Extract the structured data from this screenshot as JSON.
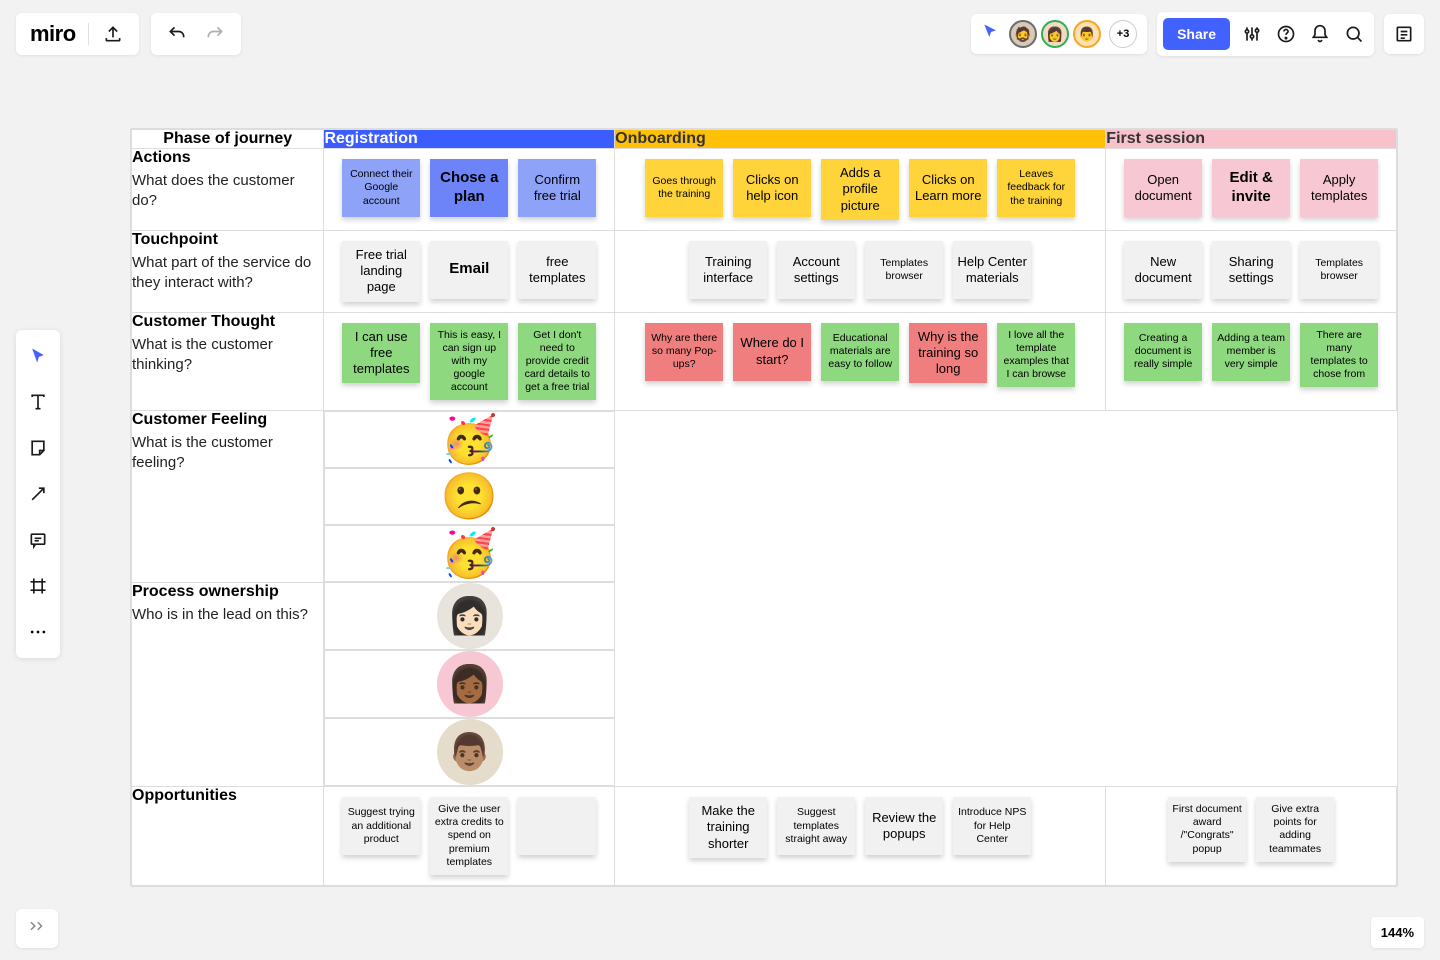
{
  "brand": "miro",
  "topbar": {
    "share_label": "Share",
    "extra_collaborators": "+3",
    "avatars": [
      {
        "border": "#6b6b6b",
        "bg": "#d9c9b8",
        "glyph": "🧔"
      },
      {
        "border": "#2bb24c",
        "bg": "#f4d9c6",
        "glyph": "👩"
      },
      {
        "border": "#f5a623",
        "bg": "#ffe0b2",
        "glyph": "👨"
      }
    ]
  },
  "zoom": "144%",
  "colors": {
    "blue_header": "#3b5cff",
    "yellow_header": "#ffc107",
    "pink_header": "#f8c2cc",
    "sticky_blue_a": "#8ea2f8",
    "sticky_blue_b": "#6c84f7",
    "sticky_yellow": "#ffd43b",
    "sticky_pink": "#f7c8d3",
    "sticky_grey": "#f1f1f1",
    "sticky_green": "#8ed97f",
    "sticky_red": "#f07e7e",
    "canvas_bg": "#f2f2f2"
  },
  "journey": {
    "header_label": "Phase of journey",
    "phases": [
      {
        "key": "reg",
        "label": "Registration",
        "bg": "#3b5cff",
        "fg": "#ffffff"
      },
      {
        "key": "onb",
        "label": "Onboarding",
        "bg": "#ffc107",
        "fg": "#333333"
      },
      {
        "key": "first",
        "label": "First session",
        "bg": "#f8c2cc",
        "fg": "#333333"
      }
    ],
    "rows": [
      {
        "title": "Actions",
        "subtitle": "What does the customer do?",
        "cells": {
          "reg": [
            {
              "text": "Connect their Google account",
              "bg": "#8ea2f8"
            },
            {
              "text": "Chose a plan",
              "bg": "#6c84f7",
              "cls": "big"
            },
            {
              "text": "Confirm free trial",
              "bg": "#8ea2f8",
              "cls": "med"
            }
          ],
          "onb": [
            {
              "text": "Goes through the training",
              "bg": "#ffd43b"
            },
            {
              "text": "Clicks on help icon",
              "bg": "#ffd43b",
              "cls": "med"
            },
            {
              "text": "Adds a profile picture",
              "bg": "#ffd43b",
              "cls": "med"
            },
            {
              "text": "Clicks on Learn more",
              "bg": "#ffd43b",
              "cls": "med"
            },
            {
              "text": "Leaves feedback for the training",
              "bg": "#ffd43b"
            }
          ],
          "first": [
            {
              "text": "Open document",
              "bg": "#f7c8d3",
              "cls": "med"
            },
            {
              "text": "Edit & invite",
              "bg": "#f7c8d3",
              "cls": "big"
            },
            {
              "text": "Apply templates",
              "bg": "#f7c8d3",
              "cls": "med"
            }
          ]
        }
      },
      {
        "title": "Touchpoint",
        "subtitle": "What part of the service do they interact with?",
        "cells": {
          "reg": [
            {
              "text": "Free trial landing page",
              "bg": "#f1f1f1",
              "cls": "med"
            },
            {
              "text": "Email",
              "bg": "#f1f1f1",
              "cls": "big"
            },
            {
              "text": "free templates",
              "bg": "#f1f1f1",
              "cls": "med"
            }
          ],
          "onb": [
            {
              "text": "Training interface",
              "bg": "#f1f1f1",
              "cls": "med"
            },
            {
              "text": "Account settings",
              "bg": "#f1f1f1",
              "cls": "med"
            },
            {
              "text": "Templates browser",
              "bg": "#f1f1f1"
            },
            {
              "text": "Help Center materials",
              "bg": "#f1f1f1",
              "cls": "med"
            }
          ],
          "first": [
            {
              "text": "New document",
              "bg": "#f1f1f1",
              "cls": "med"
            },
            {
              "text": "Sharing settings",
              "bg": "#f1f1f1",
              "cls": "med"
            },
            {
              "text": "Templates browser",
              "bg": "#f1f1f1"
            }
          ]
        }
      },
      {
        "title": "Customer Thought",
        "subtitle": "What is the customer thinking?",
        "cells": {
          "reg": [
            {
              "text": "I can use free templates",
              "bg": "#8ed97f",
              "cls": "med"
            },
            {
              "text": "This is easy, I can sign up with my google account",
              "bg": "#8ed97f"
            },
            {
              "text": "Get I don't need to provide credit card details to get a free trial",
              "bg": "#8ed97f"
            }
          ],
          "onb": [
            {
              "text": "Why are there so many Pop-ups?",
              "bg": "#f07e7e"
            },
            {
              "text": "Where do I start?",
              "bg": "#f07e7e",
              "cls": "med"
            },
            {
              "text": "Educational materials are easy to follow",
              "bg": "#8ed97f"
            },
            {
              "text": "Why is the training so long",
              "bg": "#f07e7e",
              "cls": "med"
            },
            {
              "text": "I love all the template examples that I can browse",
              "bg": "#8ed97f"
            }
          ],
          "first": [
            {
              "text": "Creating a document is really simple",
              "bg": "#8ed97f"
            },
            {
              "text": "Adding a team member is very simple",
              "bg": "#8ed97f"
            },
            {
              "text": "There are many templates to chose from",
              "bg": "#8ed97f"
            }
          ]
        }
      },
      {
        "title": "Customer Feeling",
        "subtitle": "What is the customer feeling?",
        "type": "emoji",
        "emoji": {
          "reg": "🥳",
          "onb": "😕",
          "first": "🥳"
        }
      },
      {
        "title": "Process ownership",
        "subtitle": "Who is in the lead on this?",
        "type": "avatar",
        "avatar": {
          "reg": {
            "bg": "#e8e3dc",
            "glyph": "👩🏻"
          },
          "onb": {
            "bg": "#f7c8d3",
            "glyph": "👩🏾"
          },
          "first": {
            "bg": "#e6dccb",
            "glyph": "👨🏽"
          }
        }
      },
      {
        "title": "Opportunities",
        "subtitle": "",
        "cells": {
          "reg": [
            {
              "text": "Suggest trying an additional product",
              "bg": "#f1f1f1"
            },
            {
              "text": "Give the user extra credits to spend on premium templates",
              "bg": "#f1f1f1"
            },
            {
              "text": "",
              "bg": "#f1f1f1"
            }
          ],
          "onb": [
            {
              "text": "Make the training shorter",
              "bg": "#f1f1f1",
              "cls": "med"
            },
            {
              "text": "Suggest templates straight away",
              "bg": "#f1f1f1"
            },
            {
              "text": "Review the popups",
              "bg": "#f1f1f1",
              "cls": "med"
            },
            {
              "text": "Introduce NPS for Help Center",
              "bg": "#f1f1f1"
            }
          ],
          "first": [
            {
              "text": "First document award /\"Congrats\" popup",
              "bg": "#f1f1f1"
            },
            {
              "text": "Give extra points for adding teammates",
              "bg": "#f1f1f1"
            }
          ]
        }
      }
    ]
  }
}
